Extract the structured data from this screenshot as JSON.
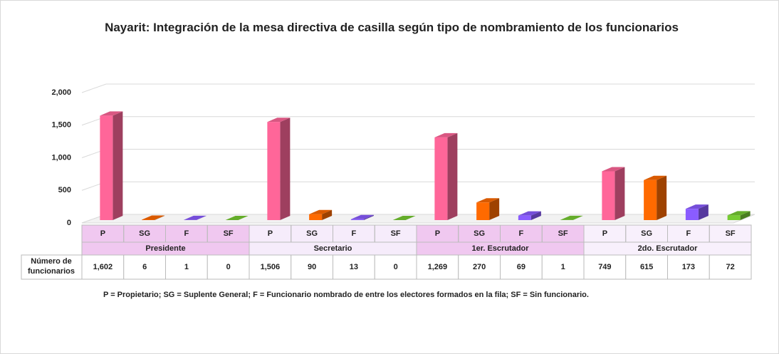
{
  "chart_data": {
    "type": "bar",
    "title": "Nayarit: Integración de la mesa directiva de casilla según tipo de nombramiento de los funcionarios",
    "categories": [
      "Presidente",
      "Secretario",
      "1er. Escrutador",
      "2do. Escrutador"
    ],
    "series": [
      {
        "name": "P",
        "color": "#ff6699",
        "values": [
          1602,
          1506,
          1269,
          749
        ],
        "value_labels": [
          "1,602",
          "1,506",
          "1,269",
          "749"
        ]
      },
      {
        "name": "SG",
        "color": "#ff6a00",
        "values": [
          6,
          90,
          270,
          615
        ]
      },
      {
        "name": "F",
        "color": "#8a5cff",
        "values": [
          1,
          13,
          69,
          173
        ]
      },
      {
        "name": "SF",
        "color": "#77cc33",
        "values": [
          0,
          0,
          1,
          72
        ]
      }
    ],
    "row_label": "Número de funcionarios",
    "note": "P = Propietario;  SG = Suplente General; F = Funcionario nombrado de entre los electores formados en la fila; SF = Sin funcionario.",
    "ylim": [
      0,
      2000
    ],
    "yticks": [
      0,
      500,
      {
        "value": 1000,
        "label": "1,000"
      },
      {
        "value": 1500,
        "label": "1,500"
      },
      {
        "value": 2000,
        "label": "2,000"
      }
    ],
    "grid": true
  }
}
